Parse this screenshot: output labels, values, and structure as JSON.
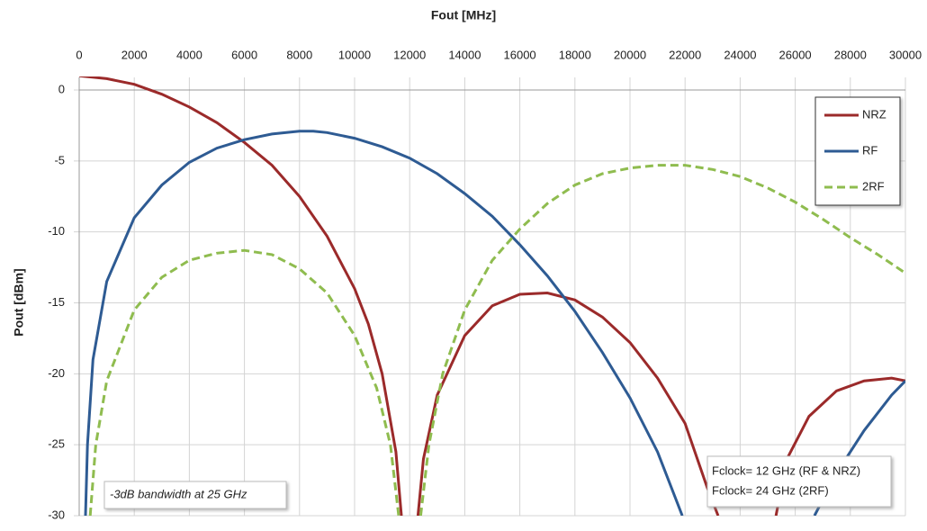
{
  "chart_data": {
    "type": "line",
    "x_label": "Fout [MHz]",
    "y_label": "Pout [dBm]",
    "xlim": [
      0,
      30000
    ],
    "xticks": [
      0,
      2000,
      4000,
      6000,
      8000,
      10000,
      12000,
      14000,
      16000,
      18000,
      20000,
      22000,
      24000,
      26000,
      28000,
      30000
    ],
    "ylim": [
      -30,
      0
    ],
    "yticks": [
      0,
      -5,
      -10,
      -15,
      -20,
      -25,
      -30
    ],
    "grid": true,
    "legend": "top-right",
    "annotations": [
      "-3dB bandwidth at 25 GHz",
      "Fclock= 12 GHz (RF & NRZ)",
      "Fclock= 24 GHz (2RF)"
    ],
    "series": [
      {
        "name": "NRZ",
        "color": "#9b2a2a",
        "style": "solid",
        "x": [
          0,
          1000,
          2000,
          3000,
          4000,
          5000,
          6000,
          7000,
          8000,
          9000,
          10000,
          10500,
          11000,
          11500,
          11700,
          null,
          12300,
          12500,
          13000,
          14000,
          15000,
          16000,
          17000,
          18000,
          19000,
          20000,
          21000,
          22000,
          22800,
          23200,
          null,
          25300,
          25700,
          26500,
          27500,
          28500,
          29500,
          30000
        ],
        "values": [
          1.0,
          0.8,
          0.4,
          -0.3,
          -1.2,
          -2.3,
          -3.7,
          -5.3,
          -7.5,
          -10.3,
          -14,
          -16.5,
          -20,
          -25.5,
          -30,
          null,
          -30,
          -26,
          -21.5,
          -17.3,
          -15.2,
          -14.4,
          -14.3,
          -14.8,
          -16,
          -17.8,
          -20.3,
          -23.5,
          -28,
          -30,
          null,
          -30,
          -26,
          -23,
          -21.2,
          -20.5,
          -20.3,
          -20.5
        ]
      },
      {
        "name": "RF",
        "color": "#2e5b93",
        "style": "solid",
        "x": [
          230,
          300,
          500,
          1000,
          2000,
          3000,
          4000,
          5000,
          6000,
          7000,
          8000,
          8500,
          9000,
          10000,
          11000,
          12000,
          13000,
          14000,
          15000,
          16000,
          17000,
          18000,
          19000,
          20000,
          21000,
          21900,
          null,
          26700,
          27500,
          28500,
          29500,
          30000
        ],
        "values": [
          -30,
          -25,
          -19,
          -13.5,
          -9,
          -6.7,
          -5.1,
          -4.1,
          -3.5,
          -3.1,
          -2.9,
          -2.9,
          -3,
          -3.4,
          -4,
          -4.8,
          -5.9,
          -7.3,
          -8.9,
          -10.9,
          -13.1,
          -15.6,
          -18.5,
          -21.7,
          -25.5,
          -30,
          null,
          -30,
          -27,
          -24,
          -21.5,
          -20.5
        ]
      },
      {
        "name": "2RF",
        "color": "#8fbc4f",
        "style": "dashed",
        "x": [
          400,
          600,
          1000,
          2000,
          3000,
          4000,
          5000,
          6000,
          7000,
          8000,
          9000,
          10000,
          10800,
          11300,
          11600,
          null,
          12400,
          12700,
          13200,
          14000,
          15000,
          16000,
          17000,
          18000,
          19000,
          20000,
          21000,
          22000,
          23000,
          24000,
          25000,
          26000,
          27000,
          28000,
          29000,
          30000
        ],
        "values": [
          -30,
          -25,
          -20.5,
          -15.5,
          -13.2,
          -12,
          -11.5,
          -11.3,
          -11.6,
          -12.6,
          -14.3,
          -17.3,
          -21,
          -25,
          -30,
          null,
          -30,
          -25,
          -20,
          -15.5,
          -12,
          -9.8,
          -8,
          -6.7,
          -5.9,
          -5.5,
          -5.3,
          -5.3,
          -5.6,
          -6.1,
          -6.9,
          -7.9,
          -9.1,
          -10.4,
          -11.6,
          -12.9
        ]
      }
    ]
  }
}
